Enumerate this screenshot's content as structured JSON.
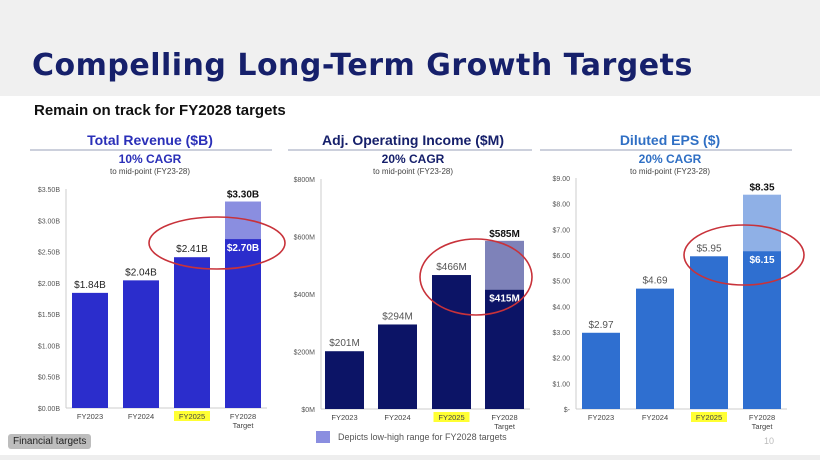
{
  "slide": {
    "title": "Compelling Long-Term Growth Targets",
    "subtitle": "Remain on track for FY2028 targets",
    "footer_badge": "Financial targets",
    "legend_text": "Depicts low-high range for FY2028 targets",
    "page_number": "10"
  },
  "chart_data": [
    {
      "type": "bar",
      "title": "Total Revenue ($B)",
      "cagr": "10% CAGR",
      "cagr_note": "to mid-point (FY23-28)",
      "categories": [
        "FY2023",
        "FY2024",
        "FY2025",
        "FY2028"
      ],
      "category_sub": [
        "",
        "",
        "",
        "Target"
      ],
      "highlighted_category": "FY2025",
      "values": [
        1.84,
        2.04,
        2.41,
        2.7
      ],
      "target_high": 3.3,
      "value_labels": [
        "$1.84B",
        "$2.04B",
        "$2.41B",
        "$2.70B"
      ],
      "target_high_label": "$3.30B",
      "yticks": [
        0,
        0.5,
        1,
        1.5,
        2,
        2.5,
        3,
        3.5
      ],
      "ytick_labels": [
        "$0.00B",
        "$0.50B",
        "$1.00B",
        "$1.50B",
        "$2.00B",
        "$2.50B",
        "$3.00B",
        "$3.50B"
      ],
      "ylim": [
        0,
        3.5
      ],
      "colors": {
        "title": "#2a2fb8",
        "bar": "#2b2dcc",
        "range": "#8a8ee0"
      }
    },
    {
      "type": "bar",
      "title": "Adj. Operating Income ($M)",
      "cagr": "20% CAGR",
      "cagr_note": "to mid-point (FY23-28)",
      "categories": [
        "FY2023",
        "FY2024",
        "FY2025",
        "FY2028"
      ],
      "category_sub": [
        "",
        "",
        "",
        "Target"
      ],
      "highlighted_category": "FY2025",
      "values": [
        201,
        294,
        466,
        415
      ],
      "target_high": 585,
      "value_labels": [
        "$201M",
        "$294M",
        "$466M",
        "$415M"
      ],
      "target_high_label": "$585M",
      "yticks": [
        0,
        200,
        400,
        600,
        800
      ],
      "ytick_labels": [
        "$0M",
        "$200M",
        "$400M",
        "$600M",
        "$800M"
      ],
      "ylim": [
        0,
        800
      ],
      "colors": {
        "title": "#16206b",
        "bar": "#0c1466",
        "range": "#7e82b9"
      }
    },
    {
      "type": "bar",
      "title": "Diluted EPS ($)",
      "cagr": "20% CAGR",
      "cagr_note": "to mid-point (FY23-28)",
      "categories": [
        "FY2023",
        "FY2024",
        "FY2025",
        "FY2028"
      ],
      "category_sub": [
        "",
        "",
        "",
        "Target"
      ],
      "highlighted_category": "FY2025",
      "values": [
        2.97,
        4.69,
        5.95,
        6.15
      ],
      "target_high": 8.35,
      "value_labels": [
        "$2.97",
        "$4.69",
        "$5.95",
        "$6.15"
      ],
      "target_high_label": "$8.35",
      "yticks": [
        0,
        1,
        2,
        3,
        4,
        5,
        6,
        7,
        8,
        9
      ],
      "ytick_labels": [
        "$-",
        "$1.00",
        "$2.00",
        "$3.00",
        "$4.00",
        "$5.00",
        "$6.00",
        "$7.00",
        "$8.00",
        "$9.00"
      ],
      "ylim": [
        0,
        9
      ],
      "colors": {
        "title": "#2f6fc4",
        "bar": "#2f6fd0",
        "range": "#8fb0e6"
      }
    }
  ]
}
